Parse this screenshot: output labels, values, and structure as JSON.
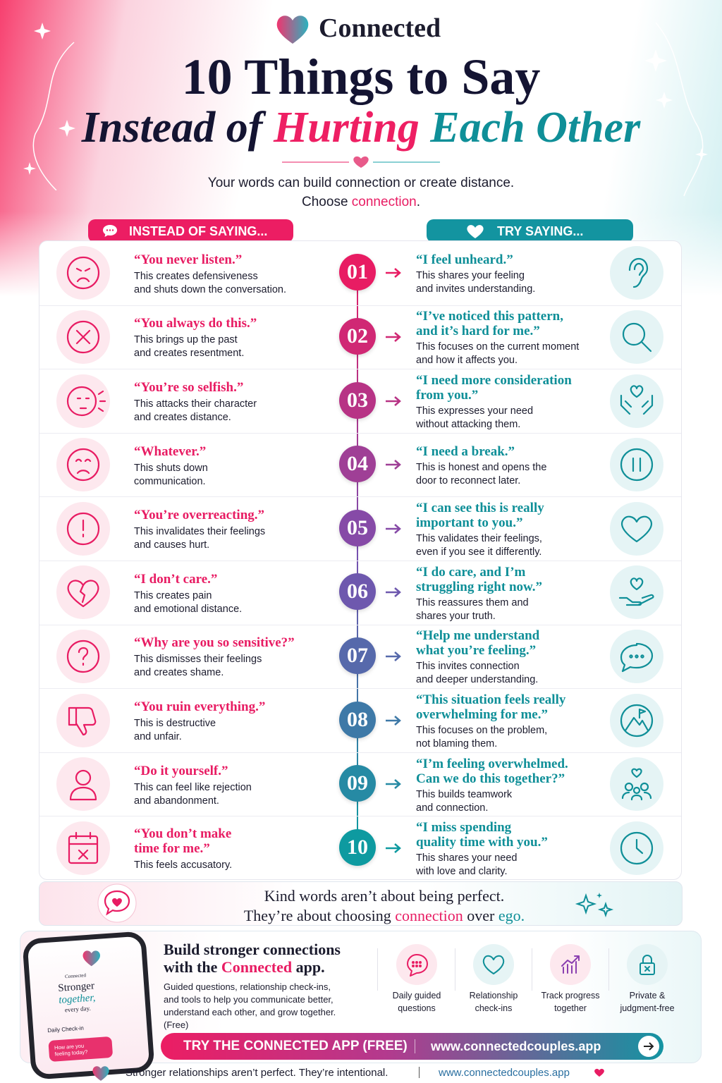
{
  "brand": "Connected",
  "title": {
    "line1": "10 Things to Say",
    "line2_a": "Instead of",
    "line2_b": "Hurting",
    "line2_c": "Each Other"
  },
  "subtitle": {
    "line1": "Your words can build connection or create distance.",
    "line2_a": "Choose",
    "line2_b": "connection",
    "line2_c": "."
  },
  "headers": {
    "left": "INSTEAD OF SAYING...",
    "right": "TRY SAYING..."
  },
  "rows": [
    {
      "number": "01",
      "bad_quote": [
        "“You never listen.”"
      ],
      "bad_desc": [
        "This creates defensiveness",
        "and shuts down the conversation."
      ],
      "good_quote": [
        "“I feel unheard.”"
      ],
      "good_desc": [
        "This shares your feeling",
        "and invites understanding."
      ]
    },
    {
      "number": "02",
      "bad_quote": [
        "“You always do this.”"
      ],
      "bad_desc": [
        "This brings up the past",
        "and creates resentment."
      ],
      "good_quote": [
        "“I’ve noticed this pattern,",
        "and it’s hard for me.”"
      ],
      "good_desc": [
        "This focuses on the current moment",
        "and how it affects you."
      ]
    },
    {
      "number": "03",
      "bad_quote": [
        "“You’re so selfish.”"
      ],
      "bad_desc": [
        "This attacks their character",
        "and creates distance."
      ],
      "good_quote": [
        "“I need more consideration",
        "from you.”"
      ],
      "good_desc": [
        "This expresses your need",
        "without attacking them."
      ]
    },
    {
      "number": "04",
      "bad_quote": [
        "“Whatever.”"
      ],
      "bad_desc": [
        "This shuts down",
        "communication."
      ],
      "good_quote": [
        "“I need a break.”"
      ],
      "good_desc": [
        "This is honest and opens the",
        "door to reconnect later."
      ]
    },
    {
      "number": "05",
      "bad_quote": [
        "“You’re overreacting.”"
      ],
      "bad_desc": [
        "This invalidates their feelings",
        "and causes hurt."
      ],
      "good_quote": [
        "“I can see this is really",
        "important to you.”"
      ],
      "good_desc": [
        "This validates their feelings,",
        "even if you see it differently."
      ]
    },
    {
      "number": "06",
      "bad_quote": [
        "“I don’t care.”"
      ],
      "bad_desc": [
        "This creates pain",
        "and emotional distance."
      ],
      "good_quote": [
        "“I do care, and I’m",
        "struggling right now.”"
      ],
      "good_desc": [
        "This reassures them and",
        "shares your truth."
      ]
    },
    {
      "number": "07",
      "bad_quote": [
        "“Why are you so sensitive?”"
      ],
      "bad_desc": [
        "This dismisses their feelings",
        "and creates shame."
      ],
      "good_quote": [
        "“Help me understand",
        "what you’re feeling.”"
      ],
      "good_desc": [
        "This invites connection",
        "and deeper understanding."
      ]
    },
    {
      "number": "08",
      "bad_quote": [
        "“You ruin everything.”"
      ],
      "bad_desc": [
        "This is destructive",
        "and unfair."
      ],
      "good_quote": [
        "“This situation feels really",
        "overwhelming for me.”"
      ],
      "good_desc": [
        "This focuses on the problem,",
        "not blaming them."
      ]
    },
    {
      "number": "09",
      "bad_quote": [
        "“Do it yourself.”"
      ],
      "bad_desc": [
        "This can feel like rejection",
        "and abandonment."
      ],
      "good_quote": [
        "“I’m feeling overwhelmed.",
        "Can we do this together?”"
      ],
      "good_desc": [
        "This builds teamwork",
        "and connection."
      ]
    },
    {
      "number": "10",
      "bad_quote": [
        "“You don’t make",
        "time for me.”"
      ],
      "bad_desc": [
        "This feels accusatory."
      ],
      "good_quote": [
        "“I miss spending",
        "quality time with you.”"
      ],
      "good_desc": [
        "This shares your need",
        "with love and clarity."
      ]
    }
  ],
  "closing": {
    "line1": "Kind words aren’t about being perfect.",
    "line2_a": "They’re about choosing",
    "line2_b": "connection",
    "line2_c": "over",
    "line2_d": "ego."
  },
  "promo": {
    "phone": {
      "brand": "Connected",
      "line1": "Stronger",
      "line2": "together,",
      "line3": "every day.",
      "checkin": "Daily Check-in",
      "bubble": [
        "How are you",
        "feeling today?"
      ]
    },
    "heading_line1": "Build stronger connections",
    "heading_a": "with the",
    "heading_b": "Connected",
    "heading_c": "app.",
    "description": [
      "Guided questions, relationship check-ins,",
      "and tools to help you communicate better,",
      "understand each other, and grow together.",
      "(Free)"
    ],
    "features": [
      [
        "Daily guided",
        "questions"
      ],
      [
        "Relationship",
        "check-ins"
      ],
      [
        "Track progress",
        "together"
      ],
      [
        "Private &",
        "judgment-free"
      ]
    ],
    "cta": "TRY THE CONNECTED APP (FREE)",
    "url": "www.connectedcouples.app"
  },
  "footer": {
    "tagline": "Stronger relationships aren’t perfect. They’re intentional.",
    "url": "www.connectedcouples.app"
  }
}
